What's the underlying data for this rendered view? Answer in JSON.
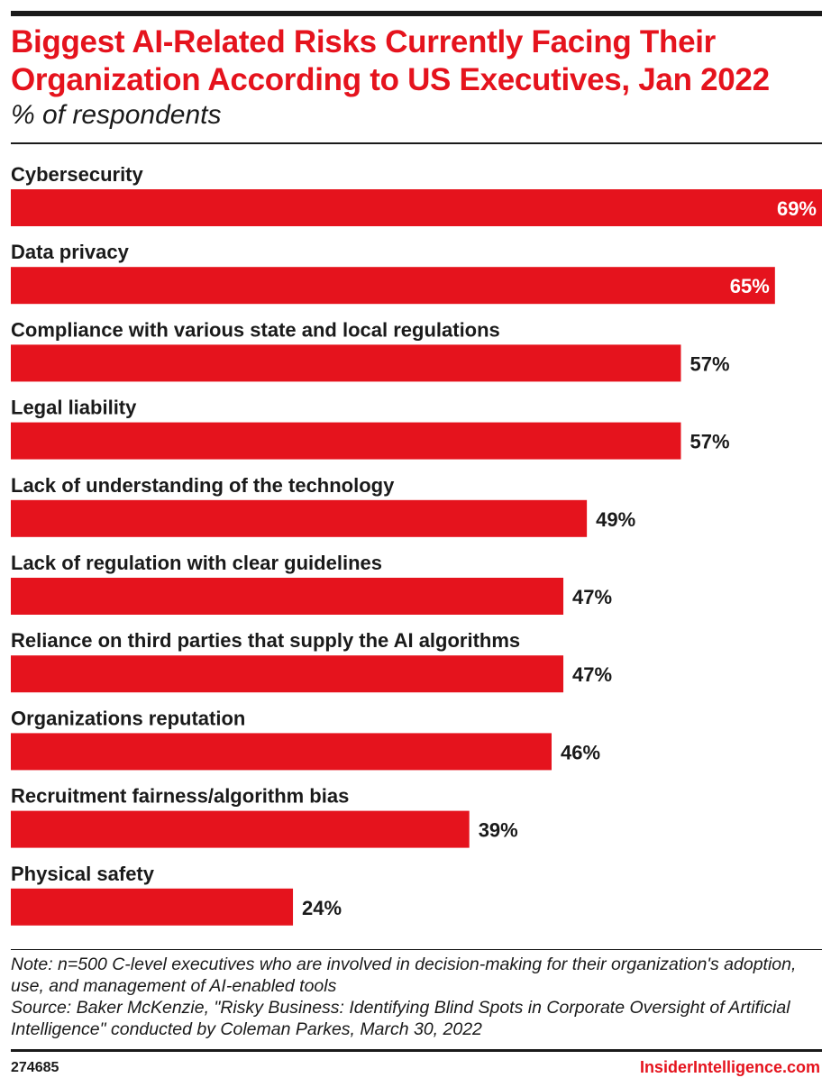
{
  "header": {
    "title": "Biggest AI-Related Risks Currently Facing Their Organization According to US Executives, Jan 2022",
    "subtitle": "% of respondents"
  },
  "chart_data": {
    "type": "bar",
    "orientation": "horizontal",
    "title": "Biggest AI-Related Risks Currently Facing Their Organization According to US Executives, Jan 2022",
    "subtitle": "% of respondents",
    "categories": [
      "Cybersecurity",
      "Data privacy",
      "Compliance with various state and local regulations",
      "Legal liability",
      "Lack of understanding of the technology",
      "Lack of regulation with clear guidelines",
      "Reliance on third parties that supply the AI algorithms",
      "Organizations reputation",
      "Recruitment fairness/algorithm bias",
      "Physical safety"
    ],
    "values": [
      69,
      65,
      57,
      57,
      49,
      47,
      47,
      46,
      39,
      24
    ],
    "value_labels": [
      "69%",
      "65%",
      "57%",
      "57%",
      "49%",
      "47%",
      "47%",
      "46%",
      "39%",
      "24%"
    ],
    "xlim": [
      0,
      69
    ],
    "grid": false,
    "legend": "none",
    "bar_color": "#e5131d"
  },
  "footer": {
    "note": "Note: n=500 C-level executives who are involved in decision-making for their organization's adoption, use, and management of AI-enabled tools",
    "source": "Source: Baker McKenzie, \"Risky Business: Identifying Blind Spots in Corporate Oversight of Artificial Intelligence\" conducted by Coleman Parkes, March 30, 2022",
    "chart_id": "274685",
    "brand": "InsiderIntelligence.com"
  }
}
